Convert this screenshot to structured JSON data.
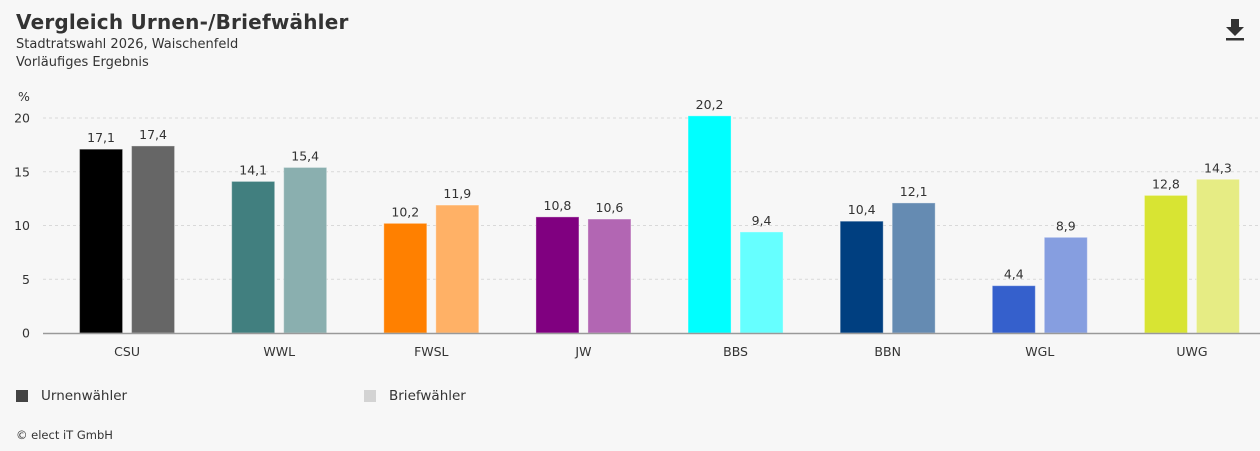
{
  "header": {
    "title": "Vergleich Urnen-/Briefwähler",
    "subtitle": "Stadtratswahl 2026, Waischenfeld",
    "status": "Vorläufiges Ergebnis",
    "download_icon": "download-icon"
  },
  "legend": {
    "items": [
      {
        "label": "Urnenwähler",
        "color": "#444444"
      },
      {
        "label": "Briefwähler",
        "color": "#d3d3d3"
      }
    ]
  },
  "footer": {
    "copyright": "© elect iT GmbH"
  },
  "chart_data": {
    "type": "bar",
    "title": "Vergleich Urnen-/Briefwähler",
    "ylabel": "%",
    "xlabel": "",
    "ylim": [
      0,
      20
    ],
    "yticks": [
      0,
      5,
      10,
      15,
      20
    ],
    "grid": true,
    "legend_position": "bottom-left",
    "categories": [
      "CSU",
      "WWL",
      "FWSL",
      "JW",
      "BBS",
      "BBN",
      "WGL",
      "UWG"
    ],
    "series": [
      {
        "name": "Urnenwähler",
        "values": [
          17.1,
          14.1,
          10.2,
          10.8,
          20.2,
          10.4,
          4.4,
          12.8
        ],
        "labels": [
          "17,1",
          "14,1",
          "10,2",
          "10,8",
          "20,2",
          "10,4",
          "4,4",
          "12,8"
        ],
        "colors": [
          "#000000",
          "#417f7f",
          "#ff8000",
          "#800080",
          "#00ffff",
          "#003f80",
          "#3560cc",
          "#d8e433"
        ]
      },
      {
        "name": "Briefwähler",
        "values": [
          17.4,
          15.4,
          11.9,
          10.6,
          9.4,
          12.1,
          8.9,
          14.3
        ],
        "labels": [
          "17,4",
          "15,4",
          "11,9",
          "10,6",
          "9,4",
          "12,1",
          "8,9",
          "14,3"
        ],
        "colors": [
          "#666666",
          "#8aafaf",
          "#ffb166",
          "#b266b3",
          "#66ffff",
          "#658bb2",
          "#869ee0",
          "#e6ec84"
        ]
      }
    ]
  }
}
